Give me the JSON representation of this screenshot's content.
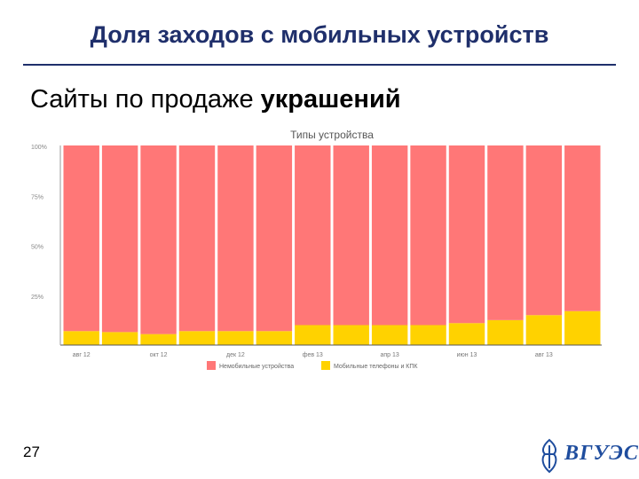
{
  "slide": {
    "title": "Доля заходов с мобильных устройств",
    "subtitle_plain": "Сайты по продаже ",
    "subtitle_bold": "украшений",
    "page_number": "27",
    "logo_text": "ВГУЭС"
  },
  "colors": {
    "desktop": "#ff7777",
    "mobile": "#ffd200",
    "title": "#1f2f6b",
    "logo": "#1f4d9e"
  },
  "chart_data": {
    "type": "bar",
    "stacked": true,
    "title": "Типы устройства",
    "ylim": [
      0,
      100
    ],
    "y_ticks": [
      "100%",
      "75%",
      "50%",
      "25%"
    ],
    "y_tick_values": [
      100,
      75,
      50,
      25
    ],
    "x_tick_labels": [
      "авг 12",
      "окт 12",
      "дек 12",
      "фев 13",
      "апр 13",
      "июн 13",
      "авг 13"
    ],
    "x_tick_bar_index": [
      0,
      2,
      4,
      6,
      8,
      10,
      12
    ],
    "bar_count": 14,
    "legend_position": "bottom",
    "series": [
      {
        "name": "Немобильные устройства",
        "color": "#ff7777",
        "values": [
          93,
          93.5,
          94.5,
          93,
          93,
          93,
          90,
          90,
          90,
          90,
          89,
          87.5,
          85,
          83
        ]
      },
      {
        "name": "Мобильные телефоны и КПК",
        "color": "#ffd200",
        "values": [
          7,
          6.5,
          5.5,
          7,
          7,
          7,
          10,
          10,
          10,
          10,
          11,
          12.5,
          15,
          17
        ]
      }
    ]
  }
}
